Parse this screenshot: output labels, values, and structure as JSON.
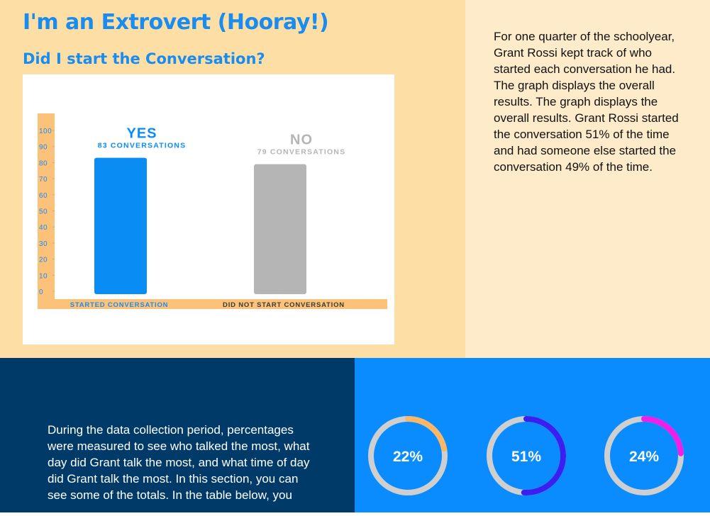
{
  "header": {
    "title": "I'm an Extrovert (Hooray!)",
    "subtitle": "Did I start the Conversation?"
  },
  "chart": {
    "type": "bar",
    "categories": [
      "STARTED CONVERSATION",
      "DID NOT START CONVERSATION"
    ],
    "bar_titles": [
      "YES",
      "NO"
    ],
    "values": [
      83,
      79
    ],
    "value_labels": [
      "83 CONVERSATIONS",
      "79 CONVERSATIONS"
    ],
    "colors": [
      "#0a8cf5",
      "#b5b5b5"
    ],
    "ylim": [
      0,
      100
    ],
    "yticks": [
      0,
      10,
      20,
      30,
      40,
      50,
      60,
      70,
      80,
      90,
      100
    ]
  },
  "description": "For one quarter of the schoolyear, Grant Rossi kept track of who started each conversation he had. The graph displays the overall results. The graph displays the overall results. Grant Rossi started the conversation 51% of the time and had someone else started the conversation 49% of the time.",
  "section2": {
    "text": "During the data collection period, percentages were measured to see who talked the most, what day did Grant talk the most, and what time of day did Grant talk the most. In this section, you can see some of the totals. In the table below, you"
  },
  "donuts": {
    "range": [
      0,
      100
    ],
    "values": [
      22,
      51,
      24
    ],
    "value_labels": [
      "22%",
      "51%",
      "24%"
    ],
    "colors": [
      "#fbb666",
      "#3b1ef0",
      "#f01ee6"
    ]
  }
}
